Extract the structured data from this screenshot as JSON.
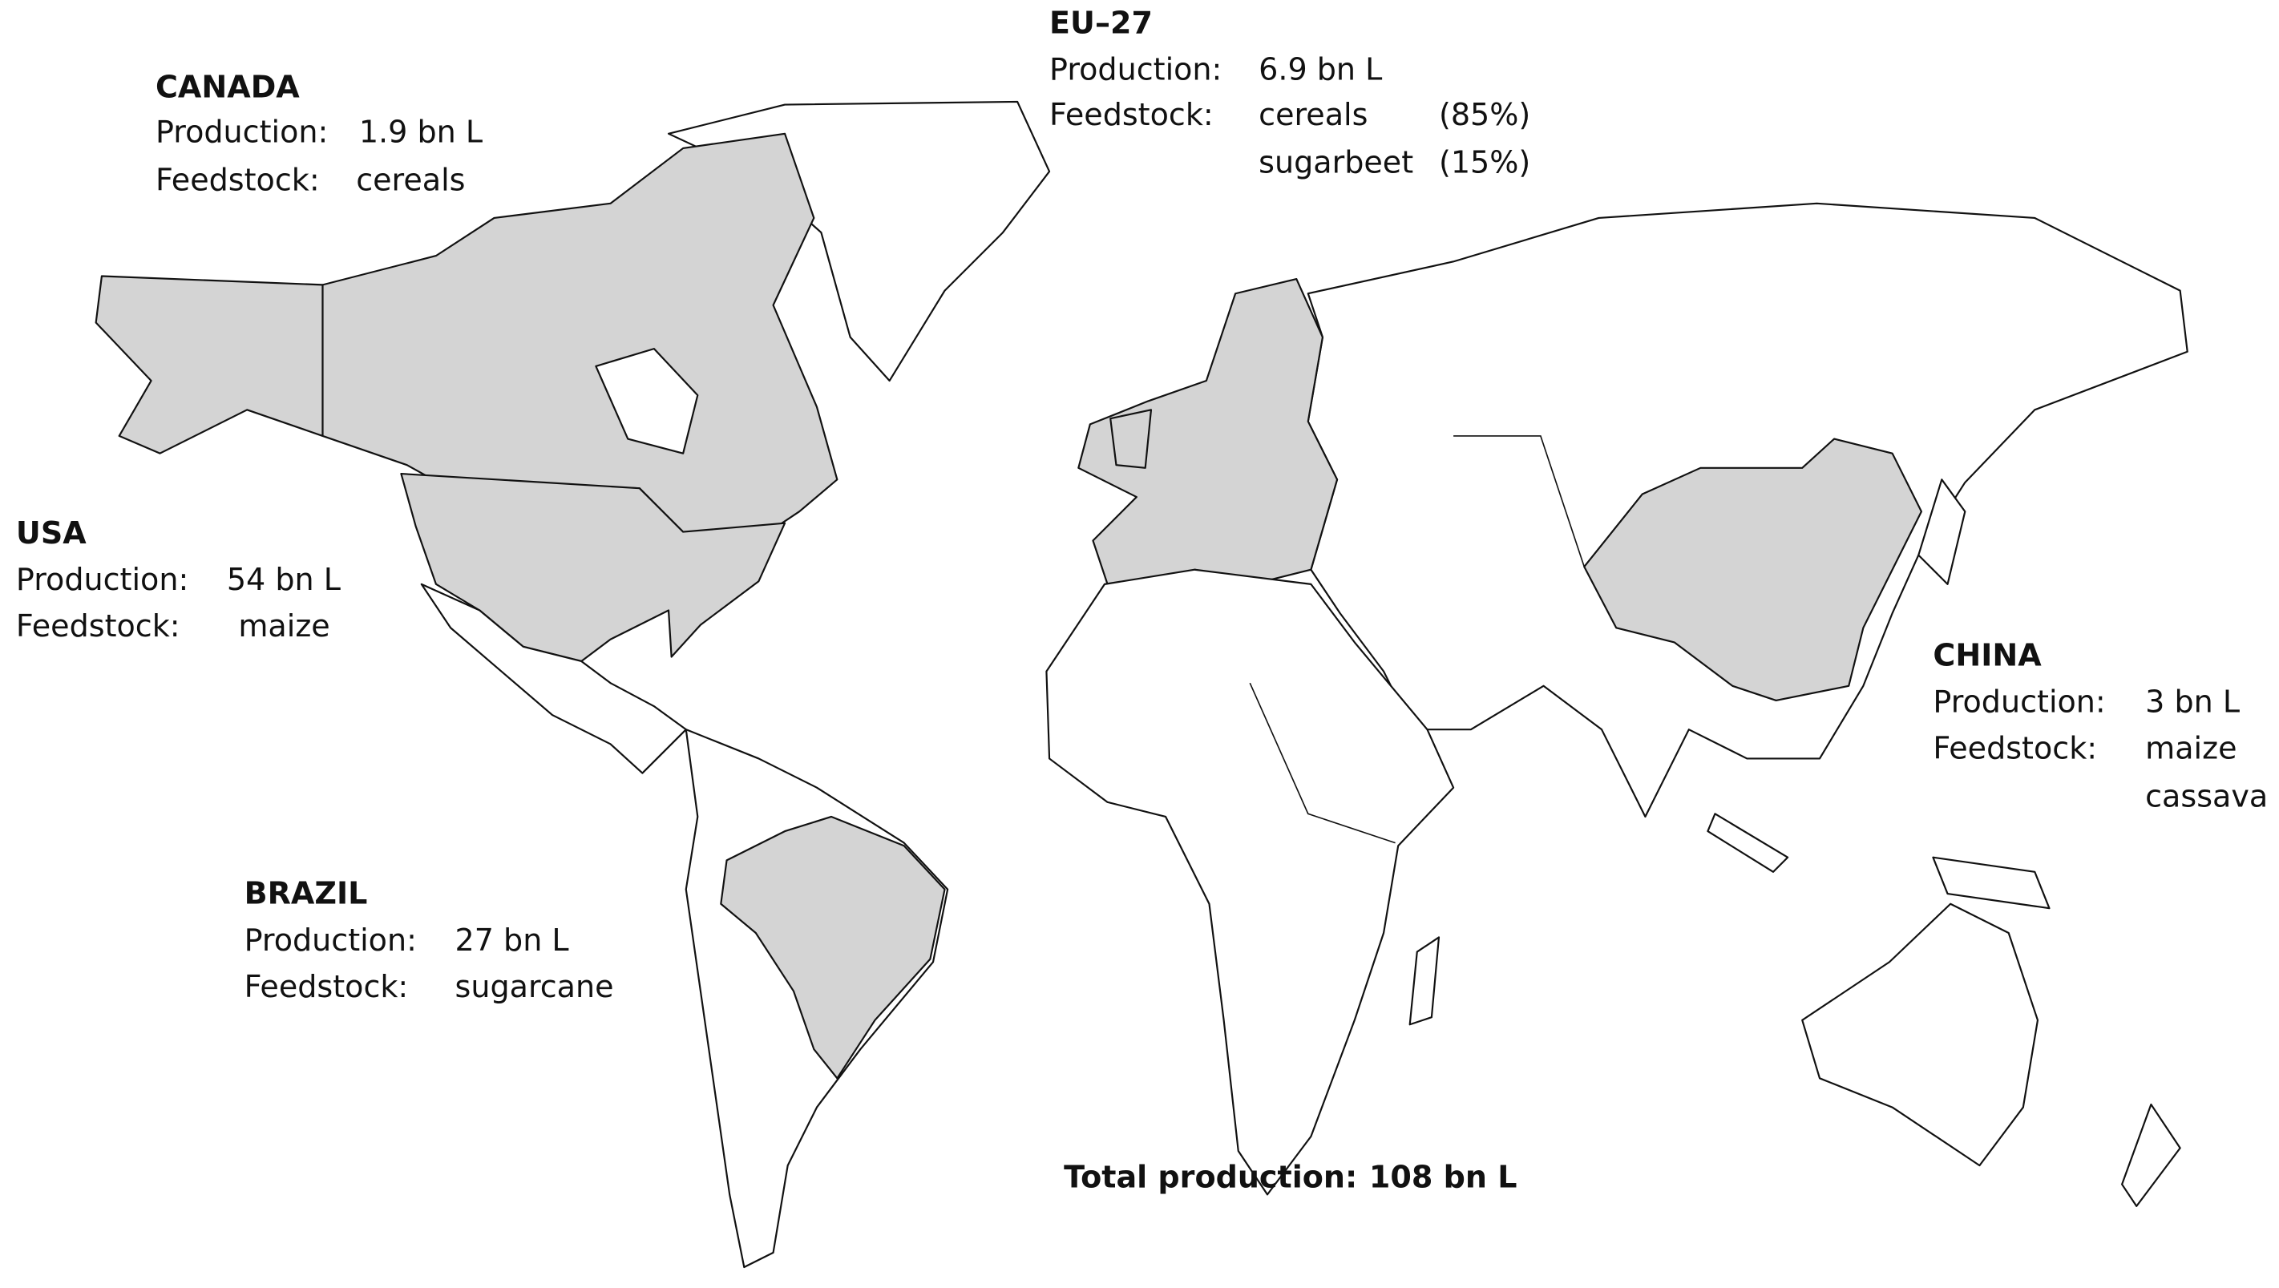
{
  "regions": [
    {
      "name": "CANADA",
      "production_label": "Production:",
      "production": "1.9 bn L",
      "feedstock_label": "Feedstock:",
      "feedstock": [
        "cereals"
      ]
    },
    {
      "name": "USA",
      "production_label": "Production:",
      "production": "54 bn L",
      "feedstock_label": "Feedstock:",
      "feedstock": [
        "maize"
      ]
    },
    {
      "name": "BRAZIL",
      "production_label": "Production:",
      "production": "27 bn L",
      "feedstock_label": "Feedstock:",
      "feedstock": [
        "sugarcane"
      ]
    },
    {
      "name": "EU–27",
      "production_label": "Production:",
      "production": "6.9 bn L",
      "feedstock_label": "Feedstock:",
      "feedstock": [
        "cereals",
        "sugarbeet"
      ],
      "feedstock_shares": [
        "(85%)",
        "(15%)"
      ]
    },
    {
      "name": "CHINA",
      "production_label": "Production:",
      "production": "3 bn L",
      "feedstock_label": "Feedstock:",
      "feedstock": [
        "maize",
        "cassava"
      ]
    }
  ],
  "total": {
    "label": "Total production:",
    "value": "108 bn L"
  }
}
